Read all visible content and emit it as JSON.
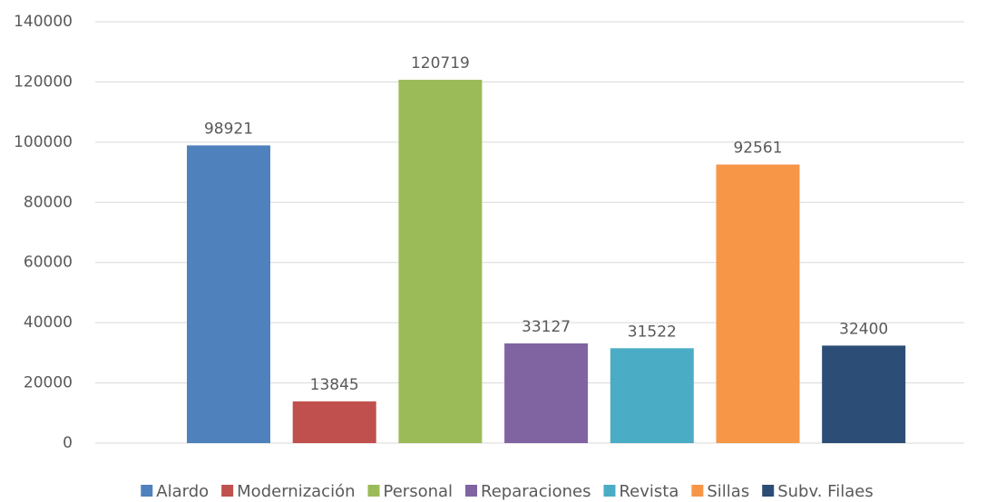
{
  "chart_data": {
    "type": "bar",
    "series": [
      {
        "name": "Alardo",
        "color": "#4f81bd",
        "values": [
          98921
        ]
      },
      {
        "name": "Modernización",
        "color": "#c0504d",
        "values": [
          13845
        ]
      },
      {
        "name": "Personal",
        "color": "#9bbb59",
        "values": [
          120719
        ]
      },
      {
        "name": "Reparaciones",
        "color": "#8064a2",
        "values": [
          33127
        ]
      },
      {
        "name": "Revista",
        "color": "#4bacc6",
        "values": [
          31522
        ]
      },
      {
        "name": "Sillas",
        "color": "#f79646",
        "values": [
          92561
        ]
      },
      {
        "name": "Subv. Filaes",
        "color": "#2c4d75",
        "values": [
          32400
        ]
      }
    ],
    "ylim": [
      0,
      140000
    ],
    "yticks": [
      0,
      20000,
      40000,
      60000,
      80000,
      100000,
      120000,
      140000
    ],
    "grid": true,
    "legend": "bottom"
  }
}
